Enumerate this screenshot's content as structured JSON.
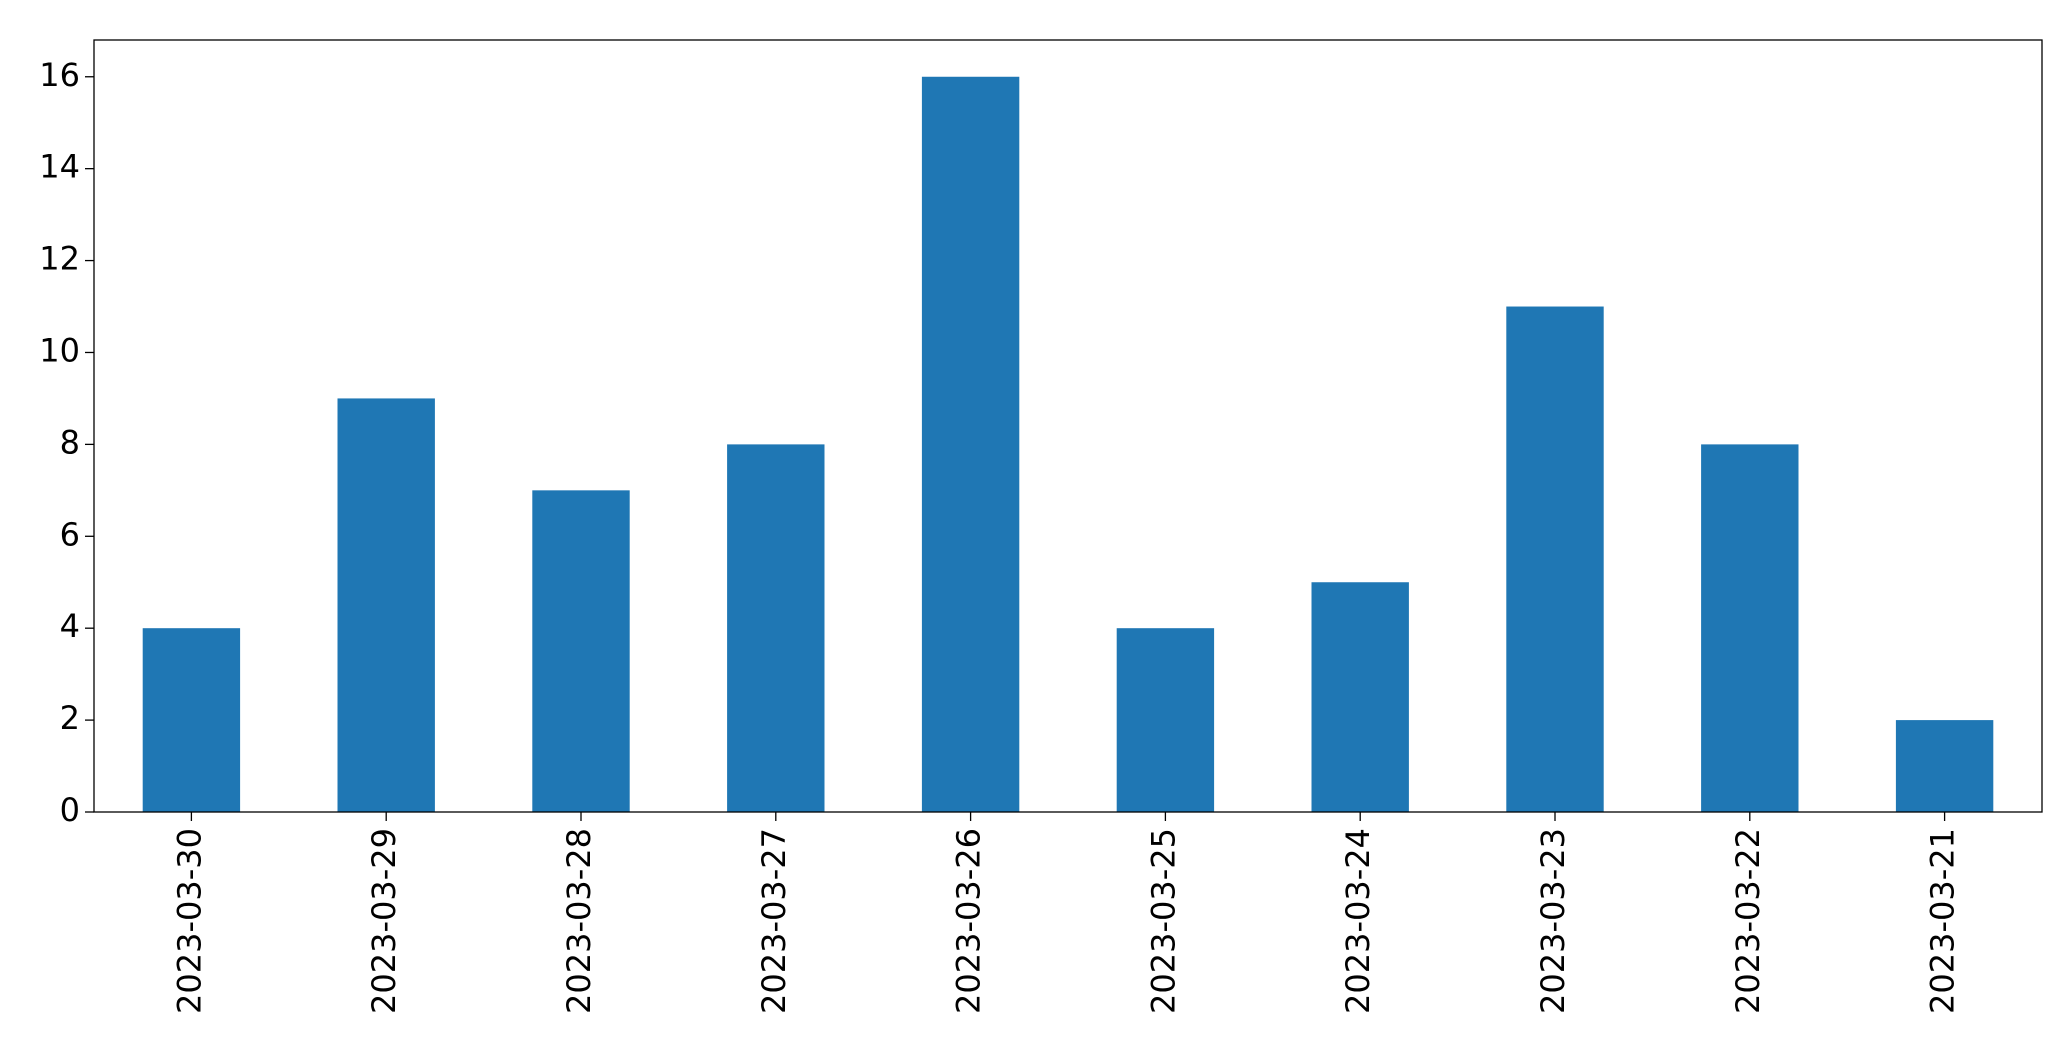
{
  "chart_data": {
    "type": "bar",
    "categories": [
      "2023-03-30",
      "2023-03-29",
      "2023-03-28",
      "2023-03-27",
      "2023-03-26",
      "2023-03-25",
      "2023-03-24",
      "2023-03-23",
      "2023-03-22",
      "2023-03-21"
    ],
    "values": [
      4,
      9,
      7,
      8,
      16,
      4,
      5,
      11,
      8,
      2
    ],
    "color": "#1f77b4",
    "ylim": [
      0,
      16.8
    ],
    "yticks": [
      0,
      2,
      4,
      6,
      8,
      10,
      12,
      14,
      16
    ],
    "grid": false
  }
}
